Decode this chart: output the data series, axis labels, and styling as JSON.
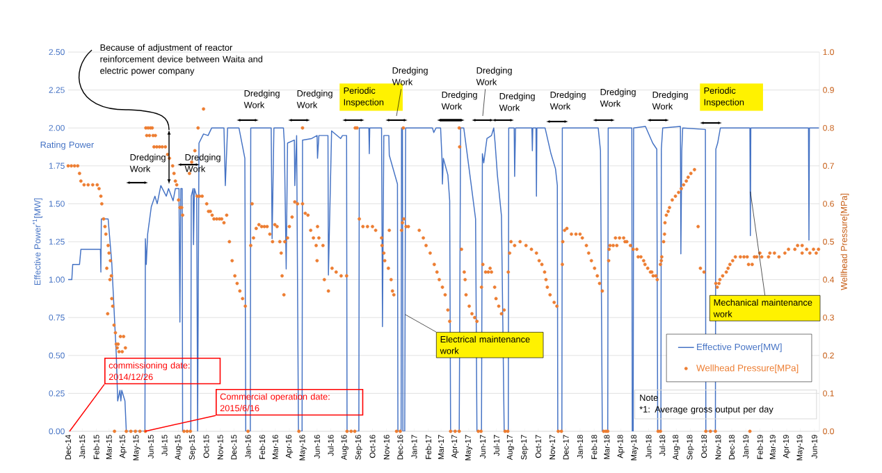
{
  "chart_data": {
    "type": "line",
    "ylabel": "Effective Power$^{*1}$[MW]",
    "y2label": "Wellhead Pressure[MPa]",
    "xlim": [
      "2014-12-01",
      "2019-06-12"
    ],
    "xticks": [
      {
        "value": "2014-12-01",
        "label": "Dec-14"
      },
      {
        "value": "2015-01-01",
        "label": "Jan-15"
      },
      {
        "value": "2015-02-01",
        "label": "Feb-15"
      },
      {
        "value": "2015-03-01",
        "label": "Mar-15"
      },
      {
        "value": "2015-04-01",
        "label": "Apr-15"
      },
      {
        "value": "2015-05-01",
        "label": "May-15"
      },
      {
        "value": "2015-06-01",
        "label": "Jun-15"
      },
      {
        "value": "2015-07-01",
        "label": "Jul-15"
      },
      {
        "value": "2015-08-01",
        "label": "Aug-15"
      },
      {
        "value": "2015-09-01",
        "label": "Sep-15"
      },
      {
        "value": "2015-10-01",
        "label": "Oct-15"
      },
      {
        "value": "2015-11-01",
        "label": "Nov-15"
      },
      {
        "value": "2015-12-01",
        "label": "Dec-15"
      },
      {
        "value": "2016-01-01",
        "label": "Jan-16"
      },
      {
        "value": "2016-02-01",
        "label": "Feb-16"
      },
      {
        "value": "2016-03-01",
        "label": "Mar-16"
      },
      {
        "value": "2016-04-01",
        "label": "Apr-16"
      },
      {
        "value": "2016-05-01",
        "label": "May-16"
      },
      {
        "value": "2016-06-01",
        "label": "Jun-16"
      },
      {
        "value": "2016-07-01",
        "label": "Jul-16"
      },
      {
        "value": "2016-08-01",
        "label": "Aug-16"
      },
      {
        "value": "2016-09-01",
        "label": "Sep-16"
      },
      {
        "value": "2016-10-01",
        "label": "Oct-16"
      },
      {
        "value": "2016-11-01",
        "label": "Nov-16"
      },
      {
        "value": "2016-12-01",
        "label": "Dec-16"
      },
      {
        "value": "2017-01-01",
        "label": "Jan-17"
      },
      {
        "value": "2017-02-01",
        "label": "Feb-17"
      },
      {
        "value": "2017-03-01",
        "label": "Mar-17"
      },
      {
        "value": "2017-04-01",
        "label": "Apr-17"
      },
      {
        "value": "2017-05-01",
        "label": "May-17"
      },
      {
        "value": "2017-06-01",
        "label": "Jun-17"
      },
      {
        "value": "2017-07-01",
        "label": "Jul-17"
      },
      {
        "value": "2017-08-01",
        "label": "Aug-17"
      },
      {
        "value": "2017-09-01",
        "label": "Sep-17"
      },
      {
        "value": "2017-10-01",
        "label": "Oct-17"
      },
      {
        "value": "2017-11-01",
        "label": "Nov-17"
      },
      {
        "value": "2017-12-01",
        "label": "Dec-17"
      },
      {
        "value": "2018-01-01",
        "label": "Jan-18"
      },
      {
        "value": "2018-02-01",
        "label": "Feb-18"
      },
      {
        "value": "2018-03-01",
        "label": "Mar-18"
      },
      {
        "value": "2018-04-01",
        "label": "Apr-18"
      },
      {
        "value": "2018-05-01",
        "label": "May-18"
      },
      {
        "value": "2018-06-01",
        "label": "Jun-18"
      },
      {
        "value": "2018-07-01",
        "label": "Jul-18"
      },
      {
        "value": "2018-08-01",
        "label": "Aug-18"
      },
      {
        "value": "2018-09-01",
        "label": "Sep-18"
      },
      {
        "value": "2018-10-01",
        "label": "Oct-18"
      },
      {
        "value": "2018-11-01",
        "label": "Nov-18"
      },
      {
        "value": "2018-12-01",
        "label": "Dec-18"
      },
      {
        "value": "2019-01-01",
        "label": "Jan-19"
      },
      {
        "value": "2019-02-01",
        "label": "Feb-19"
      },
      {
        "value": "2019-03-01",
        "label": "Mar-19"
      },
      {
        "value": "2019-04-01",
        "label": "Apr-19"
      },
      {
        "value": "2019-05-01",
        "label": "May-19"
      },
      {
        "value": "2019-06-01",
        "label": "Jun-19"
      }
    ],
    "ylim": [
      0,
      2.5
    ],
    "yticks": [
      {
        "value": 0,
        "label": "0.00"
      },
      {
        "value": 0.25,
        "label": "0.25"
      },
      {
        "value": 0.5,
        "label": "0.50"
      },
      {
        "value": 0.75,
        "label": "0.75"
      },
      {
        "value": 1.0,
        "label": "1.00"
      },
      {
        "value": 1.25,
        "label": "1.25"
      },
      {
        "value": 1.5,
        "label": "1.50"
      },
      {
        "value": 1.75,
        "label": "1.75"
      },
      {
        "value": 2.0,
        "label": "2.00"
      },
      {
        "value": 2.25,
        "label": "2.25"
      },
      {
        "value": 2.5,
        "label": "2.50"
      }
    ],
    "y2lim": [
      0,
      1.0
    ],
    "y2ticks": [
      {
        "value": 0,
        "label": "0.0"
      },
      {
        "value": 0.1,
        "label": "0.1"
      },
      {
        "value": 0.2,
        "label": "0.2"
      },
      {
        "value": 0.3,
        "label": "0.3"
      },
      {
        "value": 0.4,
        "label": "0.4"
      },
      {
        "value": 0.5,
        "label": "0.5"
      },
      {
        "value": 0.6,
        "label": "0.6"
      },
      {
        "value": 0.7,
        "label": "0.7"
      },
      {
        "value": 0.8,
        "label": "0.8"
      },
      {
        "value": 0.9,
        "label": "0.9"
      },
      {
        "value": 1.0,
        "label": "1.0"
      }
    ],
    "grid": "y",
    "legend": "bottom right",
    "line_style": "solid",
    "series": [
      {
        "name": "Effective Power[MW]",
        "color": "#4472c4",
        "x": [
          "2014-12-01",
          "2014-12-09",
          "2014-12-11",
          "2014-12-26",
          "2014-12-29",
          "2015-02-10",
          "2015-02-11",
          "2015-02-12",
          "2015-02-27",
          "2015-03-07",
          "2015-03-17",
          "2015-03-20",
          "2015-03-25",
          "2015-03-27",
          "2015-03-29",
          "2015-04-05",
          "2015-04-08",
          "2015-05-19",
          "2015-05-20",
          "2015-05-22",
          "2015-05-25",
          "2015-06-02",
          "2015-06-10",
          "2015-06-15",
          "2015-06-23",
          "2015-07-05",
          "2015-07-10",
          "2015-07-20",
          "2015-07-25",
          "2015-08-02",
          "2015-08-04",
          "2015-08-06",
          "2015-08-09",
          "2015-08-10",
          "2015-08-28",
          "2015-08-29",
          "2015-09-02",
          "2015-09-03",
          "2015-09-05",
          "2015-09-10",
          "2015-09-12",
          "2015-09-15",
          "2015-09-25",
          "2015-10-05",
          "2015-10-13",
          "2015-11-09",
          "2015-11-12",
          "2015-11-17",
          "2015-12-12",
          "2015-12-25",
          "2015-12-27",
          "2016-01-06",
          "2016-01-07",
          "2016-02-21",
          "2016-02-23",
          "2016-02-27",
          "2016-03-19",
          "2016-03-21",
          "2016-03-25",
          "2016-03-28",
          "2016-04-12",
          "2016-04-13",
          "2016-04-17",
          "2016-04-21",
          "2016-04-29",
          "2016-04-30",
          "2016-05-20",
          "2016-06-01",
          "2016-06-02",
          "2016-06-05",
          "2016-06-25",
          "2016-06-26",
          "2016-07-03",
          "2016-07-23",
          "2016-07-27",
          "2016-08-05",
          "2016-08-06",
          "2016-09-01",
          "2016-09-02",
          "2016-09-23",
          "2016-09-24",
          "2016-09-25",
          "2016-10-21",
          "2016-10-23",
          "2016-10-26",
          "2016-11-06",
          "2016-11-07",
          "2016-11-25",
          "2016-11-26",
          "2016-12-03",
          "2016-12-04",
          "2016-12-06",
          "2016-12-07",
          "2016-12-11",
          "2016-12-13",
          "2017-02-10",
          "2017-02-13",
          "2017-02-18",
          "2017-02-28",
          "2017-03-03",
          "2017-03-04",
          "2017-03-06",
          "2017-03-16",
          "2017-03-20",
          "2017-03-22",
          "2017-04-10",
          "2017-04-13",
          "2017-04-20",
          "2017-05-07",
          "2017-05-16",
          "2017-05-19",
          "2017-05-29",
          "2017-05-31",
          "2017-06-03",
          "2017-06-10",
          "2017-06-20",
          "2017-06-25",
          "2017-06-28",
          "2017-07-03",
          "2017-07-12",
          "2017-07-18",
          "2017-07-27",
          "2017-07-28",
          "2017-08-09",
          "2017-08-10",
          "2017-08-12",
          "2017-09-17",
          "2017-09-18",
          "2017-09-19",
          "2017-09-26",
          "2017-09-27",
          "2017-09-28",
          "2017-10-16",
          "2017-10-29",
          "2017-11-08",
          "2017-11-12",
          "2017-11-13",
          "2017-11-22",
          "2017-11-23",
          "2018-02-10",
          "2018-02-15",
          "2018-02-19",
          "2018-03-03",
          "2018-03-04",
          "2018-04-25",
          "2018-04-26",
          "2018-04-28",
          "2018-04-29",
          "2018-05-25",
          "2018-06-10",
          "2018-06-19",
          "2018-06-21",
          "2018-06-28",
          "2018-06-29",
          "2018-07-02",
          "2018-08-10",
          "2018-08-11",
          "2018-08-13",
          "2018-08-15",
          "2018-10-04",
          "2018-10-05",
          "2018-10-26",
          "2018-10-27",
          "2018-10-31",
          "2018-11-06",
          "2019-01-10",
          "2019-01-11",
          "2019-01-12",
          "2019-05-19",
          "2019-05-20",
          "2019-05-21",
          "2019-06-11"
        ],
        "values": [
          1.0,
          1.0,
          1.1,
          1.1,
          1.2,
          1.2,
          1.05,
          1.4,
          1.4,
          1.11,
          0.5,
          0.2,
          0.27,
          0.2,
          0.27,
          0.2,
          0,
          0,
          1.27,
          1.1,
          1.3,
          1.48,
          1.55,
          1.5,
          1.62,
          1.55,
          1.6,
          1.52,
          1.6,
          1.6,
          0.72,
          1.6,
          1.6,
          0,
          0,
          1.55,
          1.6,
          1.23,
          1.6,
          1.55,
          0,
          1.9,
          1.96,
          1.95,
          2.0,
          2.0,
          1.62,
          2.0,
          2.0,
          1.8,
          0,
          0,
          2.0,
          2.0,
          1.27,
          2.0,
          2.0,
          1.9,
          1.07,
          1.9,
          1.92,
          1.62,
          1.95,
          0,
          0,
          1.92,
          1.93,
          1.95,
          1.8,
          1.95,
          1.95,
          1.03,
          1.98,
          1.93,
          1.95,
          1.95,
          0,
          0,
          2.0,
          2.0,
          1.83,
          2.0,
          2.0,
          0.69,
          1.95,
          1.95,
          1.82,
          1.63,
          0,
          0,
          2.0,
          2.0,
          0,
          0,
          2.0,
          2.0,
          1.97,
          2.0,
          2.0,
          1.8,
          1.63,
          1.8,
          1.69,
          1.52,
          0,
          0,
          2.0,
          2.0,
          1.61,
          1.4,
          0,
          0,
          1.83,
          1.77,
          1.93,
          1.95,
          2.0,
          1.9,
          1.69,
          1.42,
          0,
          0,
          2.0,
          2.0,
          1.68,
          2.0,
          2.0,
          1.85,
          2.0,
          2.0,
          1.55,
          2.0,
          2.0,
          1.83,
          1.73,
          1.62,
          0,
          0,
          2.0,
          2.0,
          1.85,
          0,
          0,
          2.0,
          2.0,
          0,
          0,
          2.0,
          2.01,
          1.9,
          1.86,
          0,
          0,
          1.86,
          2.0,
          2.01,
          1.17,
          1.85,
          2.0,
          1.99,
          0,
          0,
          1.86,
          1.9,
          2.0,
          2.0,
          1.29,
          2.0,
          2.0,
          1.26,
          2.0,
          2.0
        ]
      },
      {
        "name": "Wellhead Pressure[MPa]",
        "type": "scatter",
        "axis": "y2",
        "color": "#ed7d31",
        "x": [
          "2014-12-01",
          "2014-12-08",
          "2014-12-15",
          "2014-12-22",
          "2014-12-26",
          "2014-12-29",
          "2015-01-05",
          "2015-01-14",
          "2015-01-24",
          "2015-02-03",
          "2015-02-07",
          "2015-02-11",
          "2015-02-13",
          "2015-02-17",
          "2015-02-20",
          "2015-02-22",
          "2015-02-24",
          "2015-02-26",
          "2015-02-27",
          "2015-03-01",
          "2015-03-03",
          "2015-03-04",
          "2015-03-06",
          "2015-03-07",
          "2015-03-09",
          "2015-03-12",
          "2015-03-13",
          "2015-03-15",
          "2015-03-17",
          "2015-03-19",
          "2015-03-21",
          "2015-03-23",
          "2015-03-26",
          "2015-03-30",
          "2015-04-02",
          "2015-04-06",
          "2015-04-08",
          "2015-04-18",
          "2015-04-28",
          "2015-05-08",
          "2015-05-20",
          "2015-05-21",
          "2015-05-26",
          "2015-05-31",
          "2015-06-04",
          "2015-05-23",
          "2015-05-29",
          "2015-06-06",
          "2015-06-11",
          "2015-06-08",
          "2015-06-14",
          "2015-06-20",
          "2015-06-26",
          "2015-07-03",
          "2015-07-08",
          "2015-07-12",
          "2015-07-19",
          "2015-07-22",
          "2015-07-25",
          "2015-07-28",
          "2015-08-01",
          "2015-08-04",
          "2015-08-08",
          "2015-08-10",
          "2015-08-13",
          "2015-08-20",
          "2015-08-27",
          "2015-08-25",
          "2015-08-30",
          "2015-09-06",
          "2015-09-13",
          "2015-09-11",
          "2015-09-16",
          "2015-09-22",
          "2015-09-25",
          "2015-10-02",
          "2015-10-06",
          "2015-10-10",
          "2015-10-14",
          "2015-10-18",
          "2015-10-24",
          "2015-10-30",
          "2015-11-04",
          "2015-11-09",
          "2015-11-15",
          "2015-11-21",
          "2015-11-27",
          "2015-12-03",
          "2015-12-08",
          "2015-12-14",
          "2015-12-20",
          "2015-12-26",
          "2016-01-01",
          "2016-01-07",
          "2016-01-10",
          "2016-01-13",
          "2016-01-19",
          "2016-01-25",
          "2016-01-31",
          "2016-02-06",
          "2016-02-12",
          "2016-02-18",
          "2016-02-24",
          "2016-02-29",
          "2016-03-05",
          "2016-03-11",
          "2016-03-14",
          "2016-03-16",
          "2016-03-20",
          "2016-03-22",
          "2016-03-28",
          "2016-04-01",
          "2016-04-07",
          "2016-04-13",
          "2016-04-19",
          "2016-04-22",
          "2016-04-30",
          "2016-04-30",
          "2016-05-06",
          "2016-05-12",
          "2016-05-18",
          "2016-05-24",
          "2016-05-30",
          "2016-06-01",
          "2016-06-02",
          "2016-06-05",
          "2016-06-14",
          "2016-06-17",
          "2016-06-26",
          "2016-07-04",
          "2016-07-13",
          "2016-07-24",
          "2016-08-05",
          "2016-08-06",
          "2016-08-15",
          "2016-08-23",
          "2016-08-24",
          "2016-08-28",
          "2016-09-02",
          "2016-09-10",
          "2016-09-20",
          "2016-10-01",
          "2016-10-08",
          "2016-10-21",
          "2016-10-22",
          "2016-10-26",
          "2016-10-28",
          "2016-11-05",
          "2016-11-07",
          "2016-11-11",
          "2016-11-14",
          "2016-11-17",
          "2016-11-23",
          "2016-12-01",
          "2016-12-04",
          "2016-12-06",
          "2016-12-08",
          "2016-12-09",
          "2016-12-14",
          "2016-12-19",
          "2017-01-12",
          "2017-01-21",
          "2017-01-27",
          "2017-02-05",
          "2017-02-14",
          "2017-02-20",
          "2017-02-25",
          "2017-03-04",
          "2017-03-10",
          "2017-03-16",
          "2017-03-20",
          "2017-03-22",
          "2017-04-01",
          "2017-04-10",
          "2017-04-10",
          "2017-04-11",
          "2017-04-15",
          "2017-04-21",
          "2017-04-23",
          "2017-04-25",
          "2017-05-02",
          "2017-05-08",
          "2017-05-14",
          "2017-05-19",
          "2017-05-22",
          "2017-05-28",
          "2017-05-29",
          "2017-06-01",
          "2017-06-07",
          "2017-06-13",
          "2017-06-17",
          "2017-06-20",
          "2017-06-27",
          "2017-06-30",
          "2017-07-06",
          "2017-07-12",
          "2017-07-18",
          "2017-07-20",
          "2017-07-26",
          "2017-07-27",
          "2017-07-30",
          "2017-08-02",
          "2017-08-10",
          "2017-08-22",
          "2017-09-04",
          "2017-09-16",
          "2017-09-27",
          "2017-10-03",
          "2017-10-09",
          "2017-10-15",
          "2017-10-18",
          "2017-10-21",
          "2017-10-27",
          "2017-11-05",
          "2017-11-11",
          "2017-11-14",
          "2017-11-21",
          "2017-11-23",
          "2017-11-24",
          "2017-11-28",
          "2017-12-03",
          "2017-12-13",
          "2017-12-23",
          "2018-01-01",
          "2018-01-06",
          "2018-01-15",
          "2018-01-20",
          "2018-01-26",
          "2018-02-02",
          "2018-02-08",
          "2018-02-13",
          "2018-02-19",
          "2018-02-22",
          "2018-02-27",
          "2018-03-03",
          "2018-03-05",
          "2018-03-06",
          "2018-03-08",
          "2018-03-15",
          "2018-03-23",
          "2018-03-20",
          "2018-03-29",
          "2018-04-07",
          "2018-04-10",
          "2018-04-14",
          "2018-04-22",
          "2018-04-28",
          "2018-05-06",
          "2018-05-09",
          "2018-05-15",
          "2018-05-21",
          "2018-05-24",
          "2018-05-30",
          "2018-06-05",
          "2018-06-08",
          "2018-06-11",
          "2018-06-17",
          "2018-06-20",
          "2018-06-22",
          "2018-06-27",
          "2018-06-27",
          "2018-06-29",
          "2018-06-30",
          "2018-07-04",
          "2018-07-06",
          "2018-07-07",
          "2018-07-10",
          "2018-07-14",
          "2018-07-17",
          "2018-07-23",
          "2018-07-30",
          "2018-08-06",
          "2018-08-12",
          "2018-08-17",
          "2018-08-23",
          "2018-08-27",
          "2018-09-02",
          "2018-09-10",
          "2018-09-18",
          "2018-09-23",
          "2018-10-01",
          "2018-10-05",
          "2018-10-15",
          "2018-10-26",
          "2018-10-27",
          "2018-10-30",
          "2018-11-03",
          "2018-11-05",
          "2018-11-11",
          "2018-11-19",
          "2018-11-23",
          "2018-11-27",
          "2018-12-03",
          "2018-12-09",
          "2018-12-20",
          "2018-12-28",
          "2019-01-04",
          "2019-01-07",
          "2019-01-10",
          "2019-01-15",
          "2019-01-20",
          "2019-01-25",
          "2019-02-01",
          "2019-02-05",
          "2019-02-20",
          "2019-02-23",
          "2019-03-05",
          "2019-03-15",
          "2019-03-28",
          "2019-04-05",
          "2019-04-19",
          "2019-04-25",
          "2019-05-05",
          "2019-05-05",
          "2019-05-15",
          "2019-05-22",
          "2019-05-30",
          "2019-06-05",
          "2019-06-10"
        ],
        "values": [
          0.7,
          0.7,
          0.7,
          0.7,
          0.68,
          0.66,
          0.65,
          0.65,
          0.65,
          0.65,
          0.64,
          0.62,
          0.6,
          0.56,
          0.54,
          0.52,
          0.43,
          0.31,
          0.49,
          0.47,
          0.4,
          0.45,
          0.41,
          0.35,
          0.33,
          0.28,
          0,
          0.26,
          0.23,
          0.22,
          0.23,
          0.21,
          0.25,
          0.21,
          0.25,
          0.22,
          0,
          0,
          0,
          0,
          0,
          0.8,
          0.8,
          0.8,
          0.8,
          0.78,
          0.78,
          0.78,
          0.78,
          0.75,
          0.75,
          0.75,
          0.75,
          0.75,
          0.73,
          0.72,
          0.7,
          0.68,
          0.66,
          0.65,
          0.61,
          0.59,
          0.59,
          0.57,
          0,
          0,
          0,
          0.68,
          0.71,
          0.74,
          0.8,
          0.62,
          0.62,
          0.62,
          0.85,
          0.6,
          0.58,
          0.58,
          0.57,
          0.56,
          0.56,
          0.56,
          0.56,
          0.55,
          0.57,
          0.5,
          0.45,
          0.41,
          0.39,
          0.37,
          0.35,
          0.33,
          0,
          0.49,
          0.6,
          0.51,
          0.535,
          0.545,
          0.54,
          0.54,
          0.54,
          0.52,
          0.5,
          0.545,
          0.54,
          0.5,
          0.47,
          0.41,
          0.36,
          0.5,
          0.51,
          0.54,
          0.565,
          0.605,
          0.6,
          0,
          0.6,
          0.8,
          0.575,
          0.57,
          0.53,
          0.51,
          0.49,
          0.45,
          0.54,
          0.51,
          0.49,
          0.4,
          0.37,
          0.43,
          0.42,
          0.41,
          0.41,
          0,
          0,
          0,
          0.8,
          0.8,
          0.56,
          0.54,
          0.54,
          0.54,
          0.53,
          0.51,
          0.49,
          0.47,
          0.45,
          0.43,
          0.53,
          0.4,
          0.37,
          0.36,
          0,
          0,
          0.53,
          0.55,
          0.8,
          0.56,
          0.54,
          0.54,
          0.53,
          0.51,
          0.49,
          0.47,
          0.44,
          0.42,
          0.4,
          0.38,
          0.36,
          0.32,
          0.29,
          0,
          0,
          0,
          0.8,
          0.75,
          0.48,
          0.42,
          0.4,
          0.36,
          0.33,
          0.31,
          0.3,
          0.29,
          0,
          0,
          0.38,
          0.44,
          0.42,
          0.42,
          0.43,
          0.42,
          0.38,
          0.35,
          0.33,
          0.31,
          0.32,
          0,
          0,
          0.42,
          0.47,
          0.5,
          0.49,
          0.5,
          0.49,
          0.48,
          0.47,
          0.45,
          0.44,
          0.42,
          0.4,
          0.38,
          0.36,
          0.34,
          0.33,
          0,
          0,
          0.44,
          0.5,
          0.53,
          0.535,
          0.52,
          0.52,
          0.52,
          0.51,
          0.49,
          0.47,
          0.45,
          0.43,
          0.41,
          0.39,
          0.37,
          0,
          0,
          0,
          0.45,
          0.48,
          0.49,
          0.49,
          0.49,
          0.51,
          0.51,
          0.51,
          0.5,
          0.5,
          0.49,
          0.48,
          0.48,
          0.46,
          0.46,
          0.45,
          0.44,
          0.43,
          0.42,
          0.42,
          0.41,
          0.41,
          0.4,
          0,
          0,
          0.44,
          0.45,
          0.46,
          0.5,
          0.52,
          0.55,
          0.57,
          0.58,
          0.59,
          0.61,
          0.62,
          0.63,
          0.64,
          0.65,
          0.66,
          0.67,
          0.68,
          0.69,
          0.54,
          0.43,
          0.42,
          0,
          0,
          0,
          0.39,
          0.38,
          0.39,
          0.4,
          0.41,
          0.42,
          0.43,
          0.44,
          0.45,
          0.46,
          0.46,
          0.46,
          0.46,
          0.44,
          0,
          0.44,
          0.46,
          0.46,
          0.47,
          0.46,
          0.46,
          0.47,
          0.47,
          0.46,
          0.47,
          0.48,
          0.48,
          0.49,
          0.49,
          0.47,
          0.48,
          0.47,
          0.48,
          0.47,
          0.48
        ]
      }
    ],
    "annotations": [
      "Because of adjustment of reactor reinforcement device between Waita and electric power company",
      "commissioning date: 2014/12/26",
      {
        "text": "Commercial operation date: 2015/6/16",
        "x": "2015-05-19",
        "y": 0
      },
      "Dredging Work",
      "Dredging Work",
      "Dredging Work",
      "Dredging Work",
      "Periodic Inspection",
      "Dredging Work",
      "Dredging Work",
      "Dredging Work",
      "Dredging Work",
      "Dredging Work",
      "Dredging Work",
      "Dredging Work",
      "Periodic Inspection",
      {
        "text": "Electrical maintenance work",
        "x": "2016-12-12",
        "y": 0.77
      },
      {
        "text": "Mechanical maintenance work",
        "x": "2019-01-11",
        "y": 1.58
      },
      "Rating Power",
      "Note",
      "*1: Average gross output per day"
    ]
  }
}
